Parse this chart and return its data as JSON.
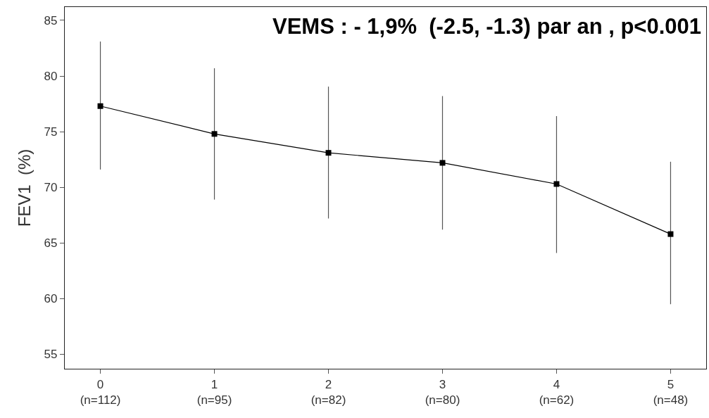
{
  "chart_data": {
    "type": "line",
    "ylabel": "FEV1  (%)",
    "annotations": [
      "VEMS : - 1,9%  (-2.5, -1.3) par an , p<0.001"
    ],
    "categories": [
      "0\n(n=112)",
      "1\n(n=95)",
      "2\n(n=82)",
      "3\n(n=80)",
      "4\n(n=62)",
      "5\n(n=48)"
    ],
    "series": [
      {
        "color": "#000000",
        "values": [
          77.3,
          74.8,
          73.1,
          72.2,
          70.3,
          65.8
        ],
        "errors": [
          [
            71.6,
            83.1
          ],
          [
            68.9,
            80.7
          ],
          [
            67.2,
            79.05
          ],
          [
            66.2,
            78.2
          ],
          [
            64.1,
            76.4
          ],
          [
            59.5,
            72.3
          ]
        ]
      }
    ],
    "marker": "square",
    "line_style": "solid",
    "ylim": [
      53.7,
      86.2
    ],
    "yticks": [
      55,
      60,
      65,
      70,
      75,
      80,
      85
    ]
  }
}
